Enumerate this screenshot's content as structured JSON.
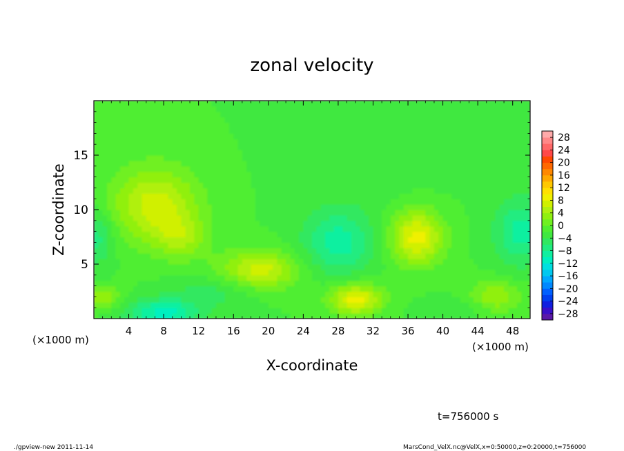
{
  "chart_data": {
    "type": "heatmap",
    "title": "zonal velocity",
    "xlabel": "X-coordinate",
    "ylabel": "Z-coordinate",
    "x_unit_left": "(×1000 m)",
    "x_unit_right": "(×1000 m)",
    "xlim": [
      0,
      50
    ],
    "ylim": [
      0,
      20
    ],
    "x_ticks": [
      4,
      8,
      12,
      16,
      20,
      24,
      28,
      32,
      36,
      40,
      44,
      48
    ],
    "y_ticks": [
      5,
      10,
      15
    ],
    "colorbar": {
      "levels": [
        -30,
        -28,
        -26,
        -24,
        -22,
        -20,
        -18,
        -16,
        -14,
        -12,
        -10,
        -8,
        -6,
        -4,
        -2,
        0,
        2,
        4,
        6,
        8,
        10,
        12,
        14,
        16,
        18,
        20,
        22,
        24,
        26,
        28,
        30
      ],
      "labels": [
        28,
        24,
        20,
        16,
        12,
        8,
        4,
        0,
        -4,
        -8,
        -12,
        -16,
        -20,
        -24,
        -28
      ],
      "colors": [
        "#5a18a8",
        "#3a10c8",
        "#1020e0",
        "#0040f0",
        "#0060ff",
        "#0088ff",
        "#00a8ff",
        "#00c8f0",
        "#00e0e0",
        "#00f0c0",
        "#10f0a0",
        "#20ec80",
        "#30e860",
        "#40e840",
        "#50ee30",
        "#70f020",
        "#90f010",
        "#b0f010",
        "#d0f000",
        "#f0f000",
        "#ffe000",
        "#ffc800",
        "#ffa800",
        "#ff8800",
        "#ff6800",
        "#ff4800",
        "#ff4848",
        "#ff6868",
        "#ff8888",
        "#ffaaaa"
      ]
    },
    "field": {
      "background": -2,
      "features": [
        {
          "x": 7,
          "z": 10.5,
          "sx": 5,
          "sz": 3.5,
          "value": 7
        },
        {
          "x": 10,
          "z": 7.5,
          "sx": 3,
          "sz": 2,
          "value": 3
        },
        {
          "x": 19,
          "z": 4.5,
          "sx": 4.5,
          "sz": 1.8,
          "value": 7
        },
        {
          "x": 30,
          "z": 1.8,
          "sx": 3,
          "sz": 1.4,
          "value": 9
        },
        {
          "x": 37,
          "z": 7.5,
          "sx": 3,
          "sz": 2.5,
          "value": 9
        },
        {
          "x": 8,
          "z": 0.5,
          "sx": 4,
          "sz": 1.3,
          "value": -11
        },
        {
          "x": 28,
          "z": 7,
          "sx": 4,
          "sz": 3,
          "value": -9
        },
        {
          "x": 49,
          "z": 8,
          "sx": 3,
          "sz": 3,
          "value": -9
        },
        {
          "x": 0.5,
          "z": 7.5,
          "sx": 1.8,
          "sz": 2.5,
          "value": -7
        },
        {
          "x": 46,
          "z": 2,
          "sx": 3,
          "sz": 1.5,
          "value": 4
        },
        {
          "x": 14,
          "z": 2.5,
          "sx": 5,
          "sz": 1.5,
          "value": -5
        },
        {
          "x": 32,
          "z": 14,
          "sx": 8,
          "sz": 5,
          "value": -3
        },
        {
          "x": 1,
          "z": 2,
          "sx": 2,
          "sz": 1,
          "value": 4
        },
        {
          "x": 42,
          "z": 1,
          "sx": 4,
          "sz": 1,
          "value": -4
        }
      ]
    }
  },
  "time_label": "t=756000 s",
  "footer_left": "./gpview-new  2011-11-14",
  "footer_right": "MarsCond_VelX.nc@VelX,x=0:50000,z=0:20000,t=756000"
}
